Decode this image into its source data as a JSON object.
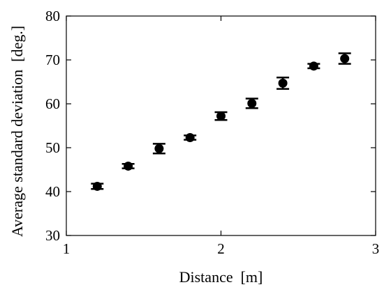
{
  "chart_data": {
    "type": "scatter",
    "title": "",
    "xlabel": "Distance  [m]",
    "ylabel": "Average standard deviation  [deg.]",
    "xlim": [
      1,
      3
    ],
    "ylim": [
      30,
      80
    ],
    "xticks": [
      1,
      2,
      3
    ],
    "yticks": [
      30,
      40,
      50,
      60,
      70,
      80
    ],
    "grid": false,
    "legend": "none",
    "marker_color": "#000000",
    "series": [
      {
        "x": [
          1.2,
          1.4,
          1.6,
          1.8,
          2.0,
          2.2,
          2.4,
          2.6,
          2.8
        ],
        "y": [
          41.2,
          45.8,
          49.8,
          52.3,
          57.2,
          60.1,
          64.7,
          68.6,
          70.3
        ],
        "error": [
          0.6,
          0.5,
          1.1,
          0.5,
          0.9,
          1.1,
          1.3,
          0.5,
          1.2
        ]
      }
    ]
  }
}
